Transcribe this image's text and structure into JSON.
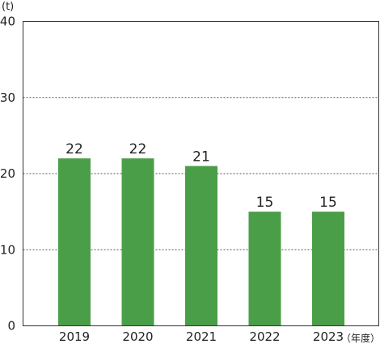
{
  "chart_data": {
    "type": "bar",
    "categories": [
      "2019",
      "2020",
      "2021",
      "2022",
      "2023"
    ],
    "values": [
      22,
      22,
      21,
      15,
      15
    ],
    "data_labels": [
      "22",
      "22",
      "21",
      "15",
      "15"
    ],
    "title": "",
    "xlabel": "（年度）",
    "ylabel": "(t)",
    "ylim": [
      0,
      40
    ],
    "yticks": [
      "0",
      "10",
      "20",
      "30",
      "40"
    ],
    "ytick_values": [
      0,
      10,
      20,
      30,
      40
    ],
    "grid": "horizontal dotted",
    "legend": "none",
    "bar_color": "#4a9e47"
  }
}
